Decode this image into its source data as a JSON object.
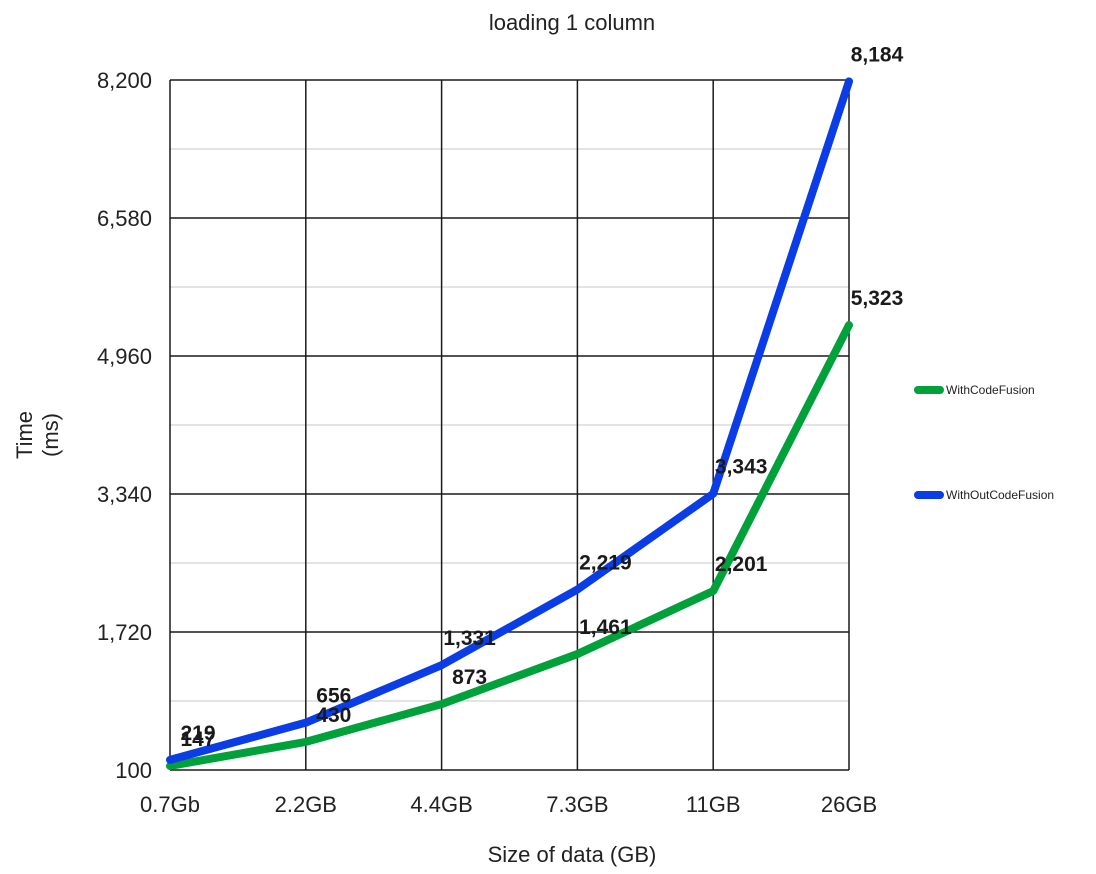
{
  "chart_data": {
    "type": "line",
    "title": "loading 1 column",
    "xlabel": "Size of data (GB)",
    "ylabel_line1": "Time",
    "ylabel_line2": "(ms)",
    "categories": [
      "0.7Gb",
      "2.2GB",
      "4.4GB",
      "7.3GB",
      "11GB",
      "26GB"
    ],
    "y_ticks": [
      "100",
      "1,720",
      "3,340",
      "4,960",
      "6,580",
      "8,200"
    ],
    "y_tick_values": [
      100,
      1720,
      3340,
      4960,
      6580,
      8200
    ],
    "ylim": [
      100,
      8200
    ],
    "grid": true,
    "legend_position": "right",
    "series": [
      {
        "name": "WithCodeFusion",
        "color": "#00a03a",
        "values": [
          147,
          430,
          873,
          1461,
          2201,
          5323
        ],
        "labels": [
          "147",
          "430",
          "873",
          "1,461",
          "2,201",
          "5,323"
        ]
      },
      {
        "name": "WithOutCodeFusion",
        "color": "#0a3de6",
        "values": [
          219,
          656,
          1331,
          2219,
          3343,
          8184
        ],
        "labels": [
          "219",
          "656",
          "1,331",
          "2,219",
          "3,343",
          "8,184"
        ]
      }
    ]
  }
}
